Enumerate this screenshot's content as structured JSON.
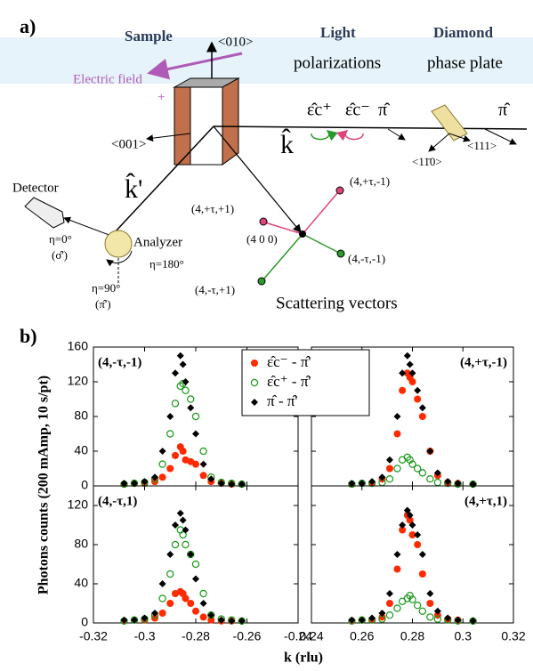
{
  "diagram": {
    "labels": {
      "panel_a": "a)",
      "sample": "Sample",
      "axis_010": "<010>",
      "light": "Light",
      "polarizations": "polarizations",
      "diamond": "Diamond",
      "phase_plate": "phase plate",
      "electric_field": "Electric field",
      "plus": "+",
      "minus": "-",
      "axis_001": "<001>",
      "k": "k̂",
      "k_prime": "k̂'",
      "eps_plus": "ε̂c⁺",
      "eps_minus": "ε̂c⁻",
      "pi_1": "π̂",
      "pi_2": "π̂",
      "axis_1m10": "<11̄0>",
      "axis_111": "<111>",
      "detector": "Detector",
      "eta0": "η=0°",
      "sigma": "(σ̂')",
      "analyzer": "Analyzer",
      "eta180": "η=180°",
      "eta90": "η=90°",
      "pi_prime": "(π̂')",
      "v_p_m1": "(4,+τ,-1)",
      "v_p_p1": "(4,+τ,+1)",
      "v_400": "(4 0 0)",
      "v_m_m1": "(4,-τ,-1)",
      "v_m_p1": "(4,-τ,+1)",
      "scattering_vectors": "Scattering vectors",
      "panel_b": "b)"
    }
  },
  "chart_data": [
    {
      "type": "scatter",
      "label": "(4,-τ,-1)",
      "y_label": "Photons counts (200 mAmp, 10 s/pt)",
      "x_label": "k (rlu)",
      "xlim": [
        -0.32,
        -0.24
      ],
      "xticks": [
        -0.32,
        -0.3,
        -0.28,
        -0.26,
        -0.24
      ],
      "ylim": [
        0,
        160
      ],
      "yticks": [
        0,
        40,
        80,
        120,
        160
      ],
      "x": [
        -0.308,
        -0.304,
        -0.3,
        -0.296,
        -0.293,
        -0.29,
        -0.288,
        -0.286,
        -0.285,
        -0.284,
        -0.282,
        -0.28,
        -0.277,
        -0.274,
        -0.27,
        -0.266,
        -0.262
      ],
      "series": [
        {
          "name": "ε̂c⁻ - π̂'",
          "color": "#ff2a00",
          "marker": "filled-circle",
          "values": [
            2,
            3,
            3,
            5,
            10,
            20,
            35,
            45,
            40,
            30,
            28,
            25,
            12,
            5,
            3,
            2,
            2
          ]
        },
        {
          "name": "ε̂c⁺ - π̂'",
          "color": "#1a9a1a",
          "marker": "open-circle",
          "values": [
            2,
            3,
            4,
            8,
            25,
            60,
            95,
            115,
            118,
            110,
            100,
            80,
            40,
            10,
            4,
            3,
            2
          ]
        },
        {
          "name": "π̂ - π̂'",
          "color": "#000000",
          "marker": "diamond",
          "values": [
            3,
            3,
            5,
            10,
            40,
            80,
            130,
            150,
            140,
            120,
            90,
            60,
            25,
            8,
            3,
            2,
            2
          ]
        }
      ]
    },
    {
      "type": "scatter",
      "label": "(4,+τ,-1)",
      "xlim": [
        0.24,
        0.32
      ],
      "xticks": [
        0.24,
        0.26,
        0.28,
        0.3,
        0.32
      ],
      "ylim": [
        0,
        160
      ],
      "yticks": [
        0,
        40,
        80,
        120,
        160
      ],
      "x": [
        0.256,
        0.26,
        0.264,
        0.268,
        0.271,
        0.274,
        0.276,
        0.278,
        0.279,
        0.28,
        0.282,
        0.284,
        0.287,
        0.29,
        0.294,
        0.298,
        0.304
      ],
      "series": [
        {
          "color": "#ff2a00",
          "marker": "filled-circle",
          "values": [
            2,
            3,
            3,
            8,
            20,
            60,
            110,
            130,
            125,
            120,
            100,
            80,
            40,
            12,
            4,
            3,
            2
          ]
        },
        {
          "color": "#1a9a1a",
          "marker": "open-circle",
          "values": [
            2,
            3,
            3,
            4,
            8,
            20,
            30,
            33,
            30,
            25,
            20,
            15,
            8,
            4,
            3,
            2,
            2
          ]
        },
        {
          "color": "#000000",
          "marker": "diamond",
          "values": [
            3,
            3,
            5,
            10,
            30,
            80,
            130,
            150,
            140,
            130,
            110,
            90,
            40,
            15,
            5,
            3,
            2
          ]
        }
      ]
    },
    {
      "type": "scatter",
      "label": "(4,-τ,1)",
      "xlim": [
        -0.32,
        -0.24
      ],
      "xticks": [
        -0.32,
        -0.3,
        -0.28,
        -0.26,
        -0.24
      ],
      "ylim": [
        0,
        140
      ],
      "yticks": [
        0,
        40,
        80,
        120
      ],
      "x": [
        -0.308,
        -0.304,
        -0.3,
        -0.296,
        -0.293,
        -0.29,
        -0.288,
        -0.286,
        -0.285,
        -0.284,
        -0.282,
        -0.28,
        -0.277,
        -0.274,
        -0.27,
        -0.266,
        -0.262
      ],
      "series": [
        {
          "color": "#ff2a00",
          "marker": "filled-circle",
          "values": [
            2,
            3,
            3,
            5,
            10,
            20,
            30,
            32,
            30,
            25,
            20,
            12,
            6,
            3,
            2,
            2,
            2
          ]
        },
        {
          "color": "#1a9a1a",
          "marker": "open-circle",
          "values": [
            2,
            3,
            4,
            8,
            25,
            50,
            80,
            95,
            90,
            80,
            70,
            60,
            30,
            8,
            4,
            3,
            2
          ]
        },
        {
          "color": "#000000",
          "marker": "diamond",
          "values": [
            3,
            3,
            5,
            10,
            40,
            70,
            100,
            112,
            105,
            95,
            70,
            45,
            20,
            8,
            3,
            2,
            2
          ]
        }
      ]
    },
    {
      "type": "scatter",
      "label": "(4,+τ,1)",
      "xlim": [
        0.24,
        0.32
      ],
      "xticks": [
        0.24,
        0.26,
        0.28,
        0.3,
        0.32
      ],
      "ylim": [
        0,
        140
      ],
      "yticks": [
        0,
        40,
        80,
        120
      ],
      "x": [
        0.256,
        0.26,
        0.264,
        0.268,
        0.271,
        0.274,
        0.276,
        0.278,
        0.279,
        0.28,
        0.282,
        0.284,
        0.287,
        0.29,
        0.294,
        0.298,
        0.304
      ],
      "series": [
        {
          "color": "#ff2a00",
          "marker": "filled-circle",
          "values": [
            2,
            3,
            3,
            6,
            20,
            55,
            95,
            110,
            105,
            90,
            80,
            50,
            20,
            8,
            4,
            3,
            2
          ]
        },
        {
          "color": "#1a9a1a",
          "marker": "open-circle",
          "values": [
            2,
            3,
            3,
            4,
            8,
            15,
            22,
            25,
            28,
            24,
            18,
            12,
            6,
            4,
            3,
            2,
            2
          ]
        },
        {
          "color": "#000000",
          "marker": "diamond",
          "values": [
            3,
            3,
            5,
            10,
            30,
            70,
            100,
            115,
            110,
            100,
            90,
            70,
            30,
            12,
            5,
            3,
            2
          ]
        }
      ]
    }
  ]
}
